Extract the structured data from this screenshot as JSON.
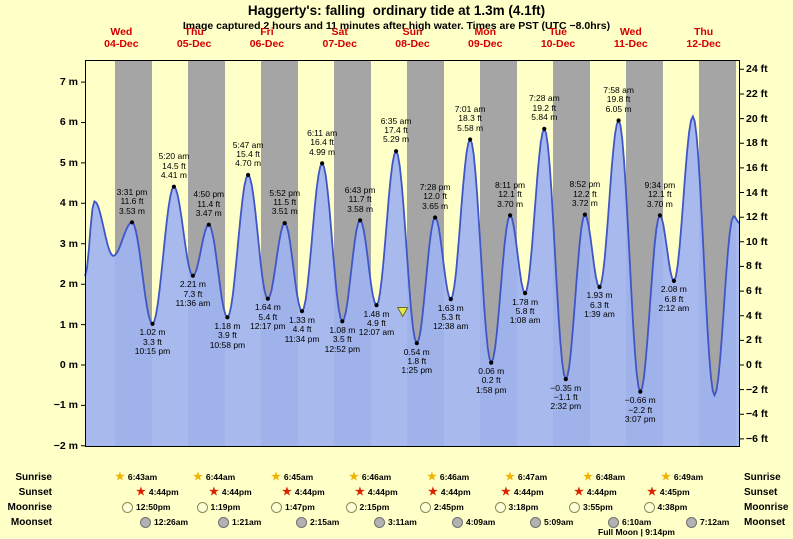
{
  "title": "Haggerty's: falling  ordinary tide at 1.3m (4.1ft)",
  "subtitle": "Image captured 2 hours and 11 minutes after high water. Times are PST (UTC −8.0hrs)",
  "colors": {
    "background": "#ffffc8",
    "night_band": "#a5a5a5",
    "tide_fill": "#9fb3f0",
    "tide_stroke": "#4055c8",
    "day_label": "#d40000",
    "sunrise_star": "#f0b400",
    "sunset_star": "#dd2200",
    "moonrise_fill": "#ffffd6",
    "moonset_fill": "#b2b2b2",
    "marker_fill": "#e8e84c"
  },
  "days": [
    {
      "weekday": "Wed",
      "date": "04-Dec"
    },
    {
      "weekday": "Thu",
      "date": "05-Dec"
    },
    {
      "weekday": "Fri",
      "date": "06-Dec"
    },
    {
      "weekday": "Sat",
      "date": "07-Dec"
    },
    {
      "weekday": "Sun",
      "date": "08-Dec"
    },
    {
      "weekday": "Mon",
      "date": "09-Dec"
    },
    {
      "weekday": "Tue",
      "date": "10-Dec"
    },
    {
      "weekday": "Wed",
      "date": "11-Dec"
    },
    {
      "weekday": "Thu",
      "date": "12-Dec"
    }
  ],
  "y_axis": {
    "left_labels": [
      "7 m",
      "6 m",
      "5 m",
      "4 m",
      "3 m",
      "2 m",
      "1 m",
      "0 m",
      "−1 m",
      "−2 m"
    ],
    "right_labels": [
      "24 ft",
      "22 ft",
      "20 ft",
      "18 ft",
      "16 ft",
      "14 ft",
      "12 ft",
      "10 ft",
      "8 ft",
      "6 ft",
      "4 ft",
      "2 ft",
      "0 ft",
      "−2 ft",
      "−4 ft",
      "−6 ft"
    ]
  },
  "chart_data": {
    "type": "area",
    "title": "Haggerty's: falling ordinary tide at 1.3m (4.1ft)",
    "ylim_m": [
      -2,
      7
    ],
    "ylim_ft": [
      -6,
      24
    ],
    "x_range_days": 9,
    "grid": false,
    "tide_events": [
      {
        "day": 0,
        "t": 0.646,
        "type": "high",
        "time": "3:31 pm",
        "ft": 11.6,
        "m": 3.53
      },
      {
        "day": 0,
        "t": 0.927,
        "type": "low",
        "time": "10:15 pm",
        "ft": 3.3,
        "m": 1.02
      },
      {
        "day": 1,
        "t": 1.222,
        "type": "high",
        "time": "5:20 am",
        "ft": 14.5,
        "m": 4.41
      },
      {
        "day": 1,
        "t": 1.483,
        "type": "low",
        "time": "11:36 am",
        "ft": 7.3,
        "m": 2.21
      },
      {
        "day": 1,
        "t": 1.701,
        "type": "high",
        "time": "4:50 pm",
        "ft": 11.4,
        "m": 3.47
      },
      {
        "day": 1,
        "t": 1.957,
        "type": "low",
        "time": "10:58 pm",
        "ft": 3.9,
        "m": 1.18
      },
      {
        "day": 2,
        "t": 2.241,
        "type": "high",
        "time": "5:47 am",
        "ft": 15.4,
        "m": 4.7
      },
      {
        "day": 2,
        "t": 2.512,
        "type": "low",
        "time": "12:17 pm",
        "ft": 5.4,
        "m": 1.64
      },
      {
        "day": 2,
        "t": 2.744,
        "type": "high",
        "time": "5:52 pm",
        "ft": 11.5,
        "m": 3.51
      },
      {
        "day": 2,
        "t": 2.982,
        "type": "low",
        "time": "11:34 pm",
        "ft": 4.4,
        "m": 1.33
      },
      {
        "day": 3,
        "t": 3.258,
        "type": "high",
        "time": "6:11 am",
        "ft": 16.4,
        "m": 4.99
      },
      {
        "day": 3,
        "t": 3.536,
        "type": "low",
        "time": "12:52 pm",
        "ft": 3.5,
        "m": 1.08
      },
      {
        "day": 3,
        "t": 3.78,
        "type": "high",
        "time": "6:43 pm",
        "ft": 11.7,
        "m": 3.58
      },
      {
        "day": 4,
        "t": 4.005,
        "type": "low",
        "time": "12:07 am",
        "ft": 4.9,
        "m": 1.48
      },
      {
        "day": 4,
        "t": 4.274,
        "type": "high",
        "time": "6:35 am",
        "ft": 17.4,
        "m": 5.29
      },
      {
        "day": 4,
        "t": 4.559,
        "type": "low",
        "time": "1:25 pm",
        "ft": 1.8,
        "m": 0.54
      },
      {
        "day": 4,
        "t": 4.811,
        "type": "high",
        "time": "7:28 pm",
        "ft": 12.0,
        "m": 3.65
      },
      {
        "day": 5,
        "t": 5.026,
        "type": "low",
        "time": "12:38 am",
        "ft": 5.3,
        "m": 1.63
      },
      {
        "day": 5,
        "t": 5.292,
        "type": "high",
        "time": "7:01 am",
        "ft": 18.3,
        "m": 5.58
      },
      {
        "day": 5,
        "t": 5.582,
        "type": "low",
        "time": "1:58 pm",
        "ft": 0.2,
        "m": 0.06
      },
      {
        "day": 5,
        "t": 5.841,
        "type": "high",
        "time": "8:11 pm",
        "ft": 12.1,
        "m": 3.7
      },
      {
        "day": 6,
        "t": 6.047,
        "type": "low",
        "time": "1:08 am",
        "ft": 5.8,
        "m": 1.78
      },
      {
        "day": 6,
        "t": 6.311,
        "type": "high",
        "time": "7:28 am",
        "ft": 19.2,
        "m": 5.84
      },
      {
        "day": 6,
        "t": 6.606,
        "type": "low",
        "time": "2:32 pm",
        "ft": -1.1,
        "m": -0.35
      },
      {
        "day": 6,
        "t": 6.869,
        "type": "high",
        "time": "8:52 pm",
        "ft": 12.2,
        "m": 3.72
      },
      {
        "day": 7,
        "t": 7.069,
        "type": "low",
        "time": "1:39 am",
        "ft": 6.3,
        "m": 1.93
      },
      {
        "day": 7,
        "t": 7.332,
        "type": "high",
        "time": "7:58 am",
        "ft": 19.8,
        "m": 6.05
      },
      {
        "day": 7,
        "t": 7.63,
        "type": "low",
        "time": "3:07 pm",
        "ft": -2.2,
        "m": -0.66
      },
      {
        "day": 7,
        "t": 7.899,
        "type": "high",
        "time": "9:34 pm",
        "ft": 12.1,
        "m": 3.7
      },
      {
        "day": 8,
        "t": 8.092,
        "type": "low",
        "time": "2:12 am",
        "ft": 6.8,
        "m": 2.08
      }
    ],
    "curve_lead_points": [
      {
        "t": 0.0,
        "m": 2.2
      },
      {
        "t": 0.129,
        "m": 4.05
      },
      {
        "t": 0.388,
        "m": 2.7
      }
    ],
    "curve_tail_points": [
      {
        "t": 8.353,
        "m": 6.15
      },
      {
        "t": 8.65,
        "m": -0.75
      },
      {
        "t": 8.911,
        "m": 3.68
      },
      {
        "t": 9.0,
        "m": 3.5
      }
    ],
    "current_level_marker": {
      "t": 4.365,
      "m": 1.3
    }
  },
  "astro": {
    "rows": [
      {
        "label": "Sunrise",
        "icon": "sunrise-star-icon",
        "times": [
          "6:43am",
          "6:44am",
          "6:45am",
          "6:46am",
          "6:46am",
          "6:47am",
          "6:48am",
          "6:49am"
        ]
      },
      {
        "label": "Sunset",
        "icon": "sunset-star-icon",
        "times": [
          "4:44pm",
          "4:44pm",
          "4:44pm",
          "4:44pm",
          "4:44pm",
          "4:44pm",
          "4:44pm",
          "4:45pm"
        ]
      },
      {
        "label": "Moonrise",
        "icon": "moonrise-icon",
        "times": [
          "12:50pm",
          "1:19pm",
          "1:47pm",
          "2:15pm",
          "2:45pm",
          "3:18pm",
          "3:55pm",
          "4:38pm"
        ]
      },
      {
        "label": "Moonset",
        "icon": "moonset-icon",
        "times": [
          "12:26am",
          "1:21am",
          "2:15am",
          "3:11am",
          "4:09am",
          "5:09am",
          "6:10am",
          "7:12am"
        ]
      }
    ],
    "full_moon": "Full Moon | 9:14pm"
  }
}
